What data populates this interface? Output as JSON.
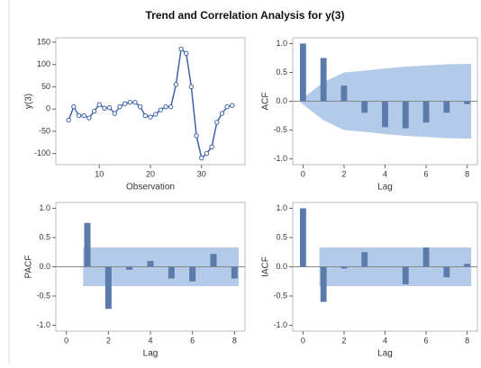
{
  "title": "Trend and Correlation Analysis for y(3)",
  "chart_data": [
    {
      "type": "line",
      "xlabel": "Observation",
      "ylabel": "y(3)",
      "color": "#3e64a8",
      "x": [
        4,
        5,
        6,
        7,
        8,
        9,
        10,
        11,
        12,
        13,
        14,
        15,
        16,
        17,
        18,
        19,
        20,
        21,
        22,
        23,
        24,
        25,
        26,
        27,
        28,
        29,
        30,
        31,
        32,
        33,
        34,
        35,
        36
      ],
      "y": [
        -25,
        5,
        -15,
        -15,
        -20,
        -5,
        10,
        2,
        3,
        -10,
        5,
        12,
        15,
        15,
        5,
        -15,
        -18,
        -12,
        -2,
        5,
        5,
        55,
        135,
        125,
        50,
        -60,
        -110,
        -100,
        -85,
        -30,
        -10,
        5,
        8
      ],
      "xlim": [
        1.5,
        38.5
      ],
      "xticks": [
        10,
        20,
        30
      ],
      "ylim": [
        -125,
        160
      ],
      "yticks": [
        -100,
        -50,
        0,
        50,
        100,
        150
      ]
    },
    {
      "type": "bar",
      "xlabel": "Lag",
      "ylabel": "ACF",
      "color": "#5b7bab",
      "band_color": "#b3cbe8",
      "x": [
        0,
        1,
        2,
        3,
        4,
        5,
        6,
        7,
        8
      ],
      "y": [
        1,
        0.75,
        0.27,
        -0.2,
        -0.45,
        -0.47,
        -0.37,
        -0.2,
        -0.05
      ],
      "band_x": [
        0,
        1,
        2,
        3,
        4,
        5,
        6,
        7,
        8
      ],
      "band_upper": [
        0,
        0.33,
        0.5,
        0.53,
        0.57,
        0.6,
        0.62,
        0.64,
        0.65
      ],
      "xlim": [
        -0.5,
        8.5
      ],
      "xticks": [
        0,
        2,
        4,
        6,
        8
      ],
      "ylim": [
        -1.1,
        1.1
      ],
      "yticks": [
        {
          "value": -1,
          "label": "-1.0"
        },
        {
          "value": -0.5,
          "label": "-0.5"
        },
        {
          "value": 0,
          "label": "0.0"
        },
        {
          "value": 0.5,
          "label": "0.5"
        },
        {
          "value": 1,
          "label": "1.0"
        }
      ]
    },
    {
      "type": "bar",
      "xlabel": "Lag",
      "ylabel": "PACF",
      "color": "#5b7bab",
      "band_color": "#b3cbe8",
      "x": [
        1,
        2,
        3,
        4,
        5,
        6,
        7,
        8
      ],
      "y": [
        0.75,
        -0.72,
        -0.05,
        0.1,
        -0.2,
        -0.25,
        0.22,
        -0.2
      ],
      "band_x": [
        1,
        8
      ],
      "band_upper": [
        0.33,
        0.33
      ],
      "xlim": [
        -0.5,
        8.5
      ],
      "xticks": [
        0,
        2,
        4,
        6,
        8
      ],
      "ylim": [
        -1.1,
        1.1
      ],
      "yticks": [
        {
          "value": -1,
          "label": "-1.0"
        },
        {
          "value": -0.5,
          "label": "-0.5"
        },
        {
          "value": 0,
          "label": "0.0"
        },
        {
          "value": 0.5,
          "label": "0.5"
        },
        {
          "value": 1,
          "label": "1.0"
        }
      ]
    },
    {
      "type": "bar",
      "xlabel": "Lag",
      "ylabel": "IACF",
      "color": "#5b7bab",
      "band_color": "#b3cbe8",
      "x": [
        0,
        1,
        2,
        3,
        4,
        5,
        6,
        7,
        8
      ],
      "y": [
        1,
        -0.6,
        -0.03,
        0.25,
        0,
        -0.3,
        0.33,
        -0.18,
        0.05
      ],
      "band_x": [
        1,
        8
      ],
      "band_upper": [
        0.33,
        0.33
      ],
      "xlim": [
        -0.5,
        8.5
      ],
      "xticks": [
        0,
        2,
        4,
        6,
        8
      ],
      "ylim": [
        -1.1,
        1.1
      ],
      "yticks": [
        {
          "value": -1,
          "label": "-1.0"
        },
        {
          "value": -0.5,
          "label": "-0.5"
        },
        {
          "value": 0,
          "label": "0.0"
        },
        {
          "value": 0.5,
          "label": "0.5"
        },
        {
          "value": 1,
          "label": "1.0"
        }
      ]
    }
  ]
}
